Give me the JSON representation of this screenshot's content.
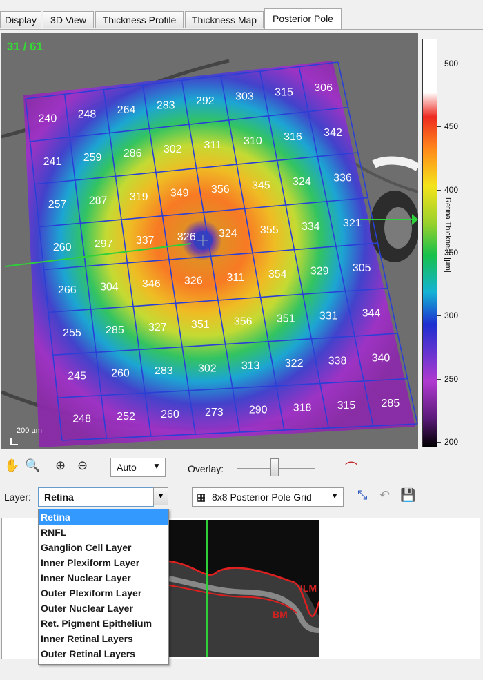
{
  "tabs": [
    {
      "label": "Display",
      "active": false
    },
    {
      "label": "3D View",
      "active": false
    },
    {
      "label": "Thickness Profile",
      "active": false
    },
    {
      "label": "Thickness Map",
      "active": false
    },
    {
      "label": "Posterior Pole",
      "active": true
    }
  ],
  "image": {
    "frame_counter": "31 / 61",
    "scale_label": "200 µm",
    "grid_values": [
      [
        240,
        248,
        264,
        283,
        292,
        303,
        315,
        306
      ],
      [
        241,
        259,
        286,
        302,
        311,
        310,
        316,
        342
      ],
      [
        257,
        287,
        319,
        349,
        356,
        345,
        324,
        336
      ],
      [
        260,
        297,
        337,
        326,
        324,
        355,
        334,
        321
      ],
      [
        266,
        304,
        346,
        326,
        311,
        354,
        329,
        305
      ],
      [
        255,
        285,
        327,
        351,
        356,
        351,
        331,
        344
      ],
      [
        245,
        260,
        283,
        302,
        313,
        322,
        338,
        340
      ],
      [
        248,
        252,
        260,
        273,
        290,
        318,
        315,
        285
      ]
    ]
  },
  "colorbar": {
    "title": "Retina Thickness [µm]",
    "ticks": [
      "500",
      "450",
      "400",
      "350",
      "300",
      "250",
      "200"
    ]
  },
  "toolbar": {
    "zoom_mode": "Auto",
    "overlay_label": "Overlay:",
    "overlay_value": 0.48
  },
  "layer": {
    "label": "Layer:",
    "selected": "Retina",
    "options": [
      "Retina",
      "RNFL",
      "Ganglion Cell Layer",
      "Inner Plexiform Layer",
      "Inner Nuclear Layer",
      "Outer Plexiform Layer",
      "Outer Nuclear Layer",
      "Ret. Pigment Epithelium",
      "Inner Retinal Layers",
      "Outer Retinal Layers"
    ]
  },
  "grid_selector": {
    "selected": "8x8 Posterior Pole Grid"
  },
  "oct": {
    "ilm_label": "ILM",
    "bm_label": "BM"
  },
  "colors": {
    "accent": "#3399ff",
    "grid": "#2a3fd6",
    "counter": "#33dd33",
    "layer_line": "#e02020",
    "scan_line": "#2fcf3a"
  }
}
